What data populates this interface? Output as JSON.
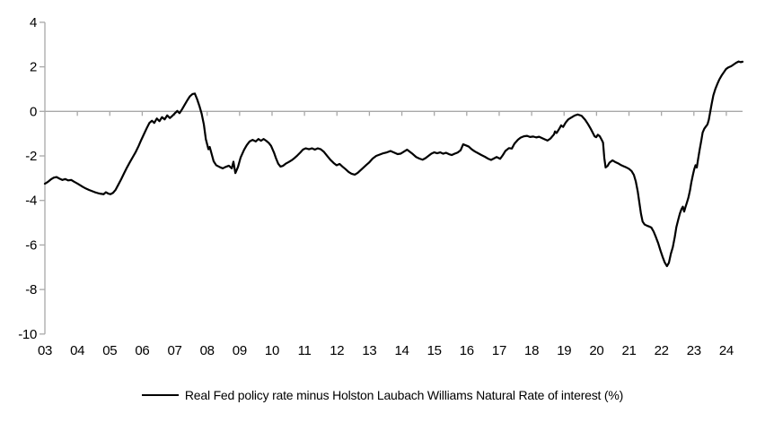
{
  "chart_data": {
    "type": "line",
    "title": "",
    "legend": {
      "label": "Real Fed policy rate minus Holston Laubach Williams Natural Rate of interest (%)",
      "position": "bottom"
    },
    "x_axis": {
      "tick_labels": [
        "03",
        "04",
        "05",
        "06",
        "07",
        "08",
        "09",
        "10",
        "11",
        "12",
        "13",
        "14",
        "15",
        "16",
        "17",
        "18",
        "19",
        "20",
        "21",
        "22",
        "23",
        "24"
      ],
      "tick_years": [
        2003,
        2004,
        2005,
        2006,
        2007,
        2008,
        2009,
        2010,
        2011,
        2012,
        2013,
        2014,
        2015,
        2016,
        2017,
        2018,
        2019,
        2020,
        2021,
        2022,
        2023,
        2024
      ],
      "range": [
        2003,
        2024.5
      ]
    },
    "y_axis": {
      "tick_values": [
        4,
        2,
        0,
        -2,
        -4,
        -6,
        -8,
        -10
      ],
      "range": [
        -10,
        4
      ]
    },
    "grid": false,
    "zero_line": true,
    "colors": {
      "series": "#000000",
      "axis": "#a8a8a8",
      "text": "#000000",
      "background": "#ffffff"
    },
    "series": [
      {
        "name": "Real Fed policy rate minus Holston Laubach Williams Natural Rate of interest (%)",
        "color": "#000000",
        "points": [
          [
            2003.0,
            -3.25
          ],
          [
            2003.09,
            -3.17
          ],
          [
            2003.18,
            -3.06
          ],
          [
            2003.27,
            -2.98
          ],
          [
            2003.36,
            -2.95
          ],
          [
            2003.45,
            -3.02
          ],
          [
            2003.54,
            -3.08
          ],
          [
            2003.63,
            -3.04
          ],
          [
            2003.72,
            -3.1
          ],
          [
            2003.81,
            -3.08
          ],
          [
            2003.9,
            -3.16
          ],
          [
            2004.0,
            -3.24
          ],
          [
            2004.09,
            -3.32
          ],
          [
            2004.18,
            -3.4
          ],
          [
            2004.27,
            -3.47
          ],
          [
            2004.36,
            -3.53
          ],
          [
            2004.45,
            -3.58
          ],
          [
            2004.54,
            -3.63
          ],
          [
            2004.63,
            -3.67
          ],
          [
            2004.72,
            -3.7
          ],
          [
            2004.81,
            -3.72
          ],
          [
            2004.88,
            -3.63
          ],
          [
            2004.95,
            -3.69
          ],
          [
            2005.02,
            -3.72
          ],
          [
            2005.1,
            -3.66
          ],
          [
            2005.18,
            -3.52
          ],
          [
            2005.26,
            -3.3
          ],
          [
            2005.35,
            -3.05
          ],
          [
            2005.44,
            -2.78
          ],
          [
            2005.53,
            -2.52
          ],
          [
            2005.62,
            -2.28
          ],
          [
            2005.71,
            -2.05
          ],
          [
            2005.8,
            -1.82
          ],
          [
            2005.89,
            -1.55
          ],
          [
            2005.97,
            -1.28
          ],
          [
            2006.06,
            -1.0
          ],
          [
            2006.14,
            -0.75
          ],
          [
            2006.22,
            -0.52
          ],
          [
            2006.3,
            -0.42
          ],
          [
            2006.37,
            -0.52
          ],
          [
            2006.45,
            -0.32
          ],
          [
            2006.53,
            -0.44
          ],
          [
            2006.61,
            -0.26
          ],
          [
            2006.69,
            -0.36
          ],
          [
            2006.77,
            -0.18
          ],
          [
            2006.85,
            -0.3
          ],
          [
            2006.93,
            -0.2
          ],
          [
            2007.01,
            -0.08
          ],
          [
            2007.08,
            0.02
          ],
          [
            2007.15,
            -0.08
          ],
          [
            2007.23,
            0.1
          ],
          [
            2007.31,
            0.3
          ],
          [
            2007.39,
            0.5
          ],
          [
            2007.47,
            0.68
          ],
          [
            2007.55,
            0.78
          ],
          [
            2007.62,
            0.8
          ],
          [
            2007.69,
            0.55
          ],
          [
            2007.76,
            0.25
          ],
          [
            2007.83,
            -0.1
          ],
          [
            2007.9,
            -0.6
          ],
          [
            2007.96,
            -1.25
          ],
          [
            2008.04,
            -1.7
          ],
          [
            2008.08,
            -1.6
          ],
          [
            2008.14,
            -1.92
          ],
          [
            2008.2,
            -2.24
          ],
          [
            2008.28,
            -2.42
          ],
          [
            2008.4,
            -2.51
          ],
          [
            2008.48,
            -2.56
          ],
          [
            2008.56,
            -2.5
          ],
          [
            2008.67,
            -2.44
          ],
          [
            2008.76,
            -2.56
          ],
          [
            2008.81,
            -2.26
          ],
          [
            2008.87,
            -2.77
          ],
          [
            2008.95,
            -2.5
          ],
          [
            2009.03,
            -2.08
          ],
          [
            2009.14,
            -1.72
          ],
          [
            2009.22,
            -1.52
          ],
          [
            2009.31,
            -1.35
          ],
          [
            2009.4,
            -1.28
          ],
          [
            2009.5,
            -1.35
          ],
          [
            2009.58,
            -1.24
          ],
          [
            2009.66,
            -1.32
          ],
          [
            2009.74,
            -1.24
          ],
          [
            2009.82,
            -1.32
          ],
          [
            2009.9,
            -1.42
          ],
          [
            2009.97,
            -1.55
          ],
          [
            2010.06,
            -1.85
          ],
          [
            2010.12,
            -2.1
          ],
          [
            2010.19,
            -2.35
          ],
          [
            2010.26,
            -2.48
          ],
          [
            2010.33,
            -2.45
          ],
          [
            2010.42,
            -2.35
          ],
          [
            2010.51,
            -2.28
          ],
          [
            2010.6,
            -2.2
          ],
          [
            2010.69,
            -2.1
          ],
          [
            2010.78,
            -1.98
          ],
          [
            2010.87,
            -1.85
          ],
          [
            2010.95,
            -1.72
          ],
          [
            2011.04,
            -1.66
          ],
          [
            2011.14,
            -1.7
          ],
          [
            2011.23,
            -1.66
          ],
          [
            2011.32,
            -1.72
          ],
          [
            2011.41,
            -1.66
          ],
          [
            2011.5,
            -1.7
          ],
          [
            2011.6,
            -1.82
          ],
          [
            2011.7,
            -2.0
          ],
          [
            2011.8,
            -2.18
          ],
          [
            2011.9,
            -2.32
          ],
          [
            2011.99,
            -2.42
          ],
          [
            2012.08,
            -2.36
          ],
          [
            2012.17,
            -2.48
          ],
          [
            2012.27,
            -2.6
          ],
          [
            2012.36,
            -2.72
          ],
          [
            2012.45,
            -2.8
          ],
          [
            2012.55,
            -2.84
          ],
          [
            2012.64,
            -2.76
          ],
          [
            2012.73,
            -2.64
          ],
          [
            2012.82,
            -2.52
          ],
          [
            2012.91,
            -2.4
          ],
          [
            2012.99,
            -2.3
          ],
          [
            2013.1,
            -2.12
          ],
          [
            2013.21,
            -2.0
          ],
          [
            2013.32,
            -1.94
          ],
          [
            2013.43,
            -1.88
          ],
          [
            2013.54,
            -1.84
          ],
          [
            2013.65,
            -1.78
          ],
          [
            2013.76,
            -1.85
          ],
          [
            2013.87,
            -1.92
          ],
          [
            2013.96,
            -1.9
          ],
          [
            2014.05,
            -1.82
          ],
          [
            2014.16,
            -1.72
          ],
          [
            2014.25,
            -1.82
          ],
          [
            2014.34,
            -1.92
          ],
          [
            2014.44,
            -2.05
          ],
          [
            2014.54,
            -2.12
          ],
          [
            2014.64,
            -2.17
          ],
          [
            2014.73,
            -2.1
          ],
          [
            2014.82,
            -2.0
          ],
          [
            2014.91,
            -1.9
          ],
          [
            2015.0,
            -1.84
          ],
          [
            2015.09,
            -1.88
          ],
          [
            2015.18,
            -1.84
          ],
          [
            2015.27,
            -1.9
          ],
          [
            2015.36,
            -1.86
          ],
          [
            2015.45,
            -1.92
          ],
          [
            2015.54,
            -1.96
          ],
          [
            2015.63,
            -1.9
          ],
          [
            2015.72,
            -1.85
          ],
          [
            2015.81,
            -1.75
          ],
          [
            2015.89,
            -1.48
          ],
          [
            2015.96,
            -1.52
          ],
          [
            2016.06,
            -1.58
          ],
          [
            2016.15,
            -1.7
          ],
          [
            2016.25,
            -1.8
          ],
          [
            2016.35,
            -1.88
          ],
          [
            2016.45,
            -1.96
          ],
          [
            2016.56,
            -2.04
          ],
          [
            2016.65,
            -2.12
          ],
          [
            2016.75,
            -2.18
          ],
          [
            2016.83,
            -2.12
          ],
          [
            2016.92,
            -2.05
          ],
          [
            2016.99,
            -2.1
          ],
          [
            2017.03,
            -2.13
          ],
          [
            2017.11,
            -1.97
          ],
          [
            2017.19,
            -1.78
          ],
          [
            2017.3,
            -1.65
          ],
          [
            2017.39,
            -1.67
          ],
          [
            2017.47,
            -1.45
          ],
          [
            2017.58,
            -1.27
          ],
          [
            2017.66,
            -1.18
          ],
          [
            2017.76,
            -1.12
          ],
          [
            2017.86,
            -1.1
          ],
          [
            2017.95,
            -1.15
          ],
          [
            2018.05,
            -1.13
          ],
          [
            2018.14,
            -1.17
          ],
          [
            2018.23,
            -1.14
          ],
          [
            2018.32,
            -1.2
          ],
          [
            2018.41,
            -1.26
          ],
          [
            2018.49,
            -1.31
          ],
          [
            2018.58,
            -1.22
          ],
          [
            2018.69,
            -1.03
          ],
          [
            2018.72,
            -0.9
          ],
          [
            2018.77,
            -0.97
          ],
          [
            2018.86,
            -0.76
          ],
          [
            2018.91,
            -0.63
          ],
          [
            2018.97,
            -0.7
          ],
          [
            2019.05,
            -0.5
          ],
          [
            2019.13,
            -0.36
          ],
          [
            2019.24,
            -0.26
          ],
          [
            2019.32,
            -0.19
          ],
          [
            2019.42,
            -0.14
          ],
          [
            2019.54,
            -0.2
          ],
          [
            2019.65,
            -0.38
          ],
          [
            2019.74,
            -0.58
          ],
          [
            2019.82,
            -0.78
          ],
          [
            2019.88,
            -0.95
          ],
          [
            2019.94,
            -1.12
          ],
          [
            2019.99,
            -1.16
          ],
          [
            2020.04,
            -1.05
          ],
          [
            2020.1,
            -1.12
          ],
          [
            2020.16,
            -1.28
          ],
          [
            2020.2,
            -1.4
          ],
          [
            2020.24,
            -2.1
          ],
          [
            2020.28,
            -2.52
          ],
          [
            2020.34,
            -2.45
          ],
          [
            2020.4,
            -2.3
          ],
          [
            2020.49,
            -2.2
          ],
          [
            2020.57,
            -2.27
          ],
          [
            2020.66,
            -2.33
          ],
          [
            2020.74,
            -2.4
          ],
          [
            2020.83,
            -2.46
          ],
          [
            2020.92,
            -2.52
          ],
          [
            2021.0,
            -2.58
          ],
          [
            2021.08,
            -2.68
          ],
          [
            2021.15,
            -2.85
          ],
          [
            2021.21,
            -3.15
          ],
          [
            2021.27,
            -3.6
          ],
          [
            2021.32,
            -4.1
          ],
          [
            2021.37,
            -4.6
          ],
          [
            2021.42,
            -4.95
          ],
          [
            2021.48,
            -5.08
          ],
          [
            2021.55,
            -5.13
          ],
          [
            2021.62,
            -5.17
          ],
          [
            2021.69,
            -5.22
          ],
          [
            2021.76,
            -5.4
          ],
          [
            2021.83,
            -5.65
          ],
          [
            2021.9,
            -5.92
          ],
          [
            2021.97,
            -6.25
          ],
          [
            2022.04,
            -6.55
          ],
          [
            2022.1,
            -6.78
          ],
          [
            2022.17,
            -6.95
          ],
          [
            2022.23,
            -6.8
          ],
          [
            2022.29,
            -6.4
          ],
          [
            2022.35,
            -6.1
          ],
          [
            2022.41,
            -5.65
          ],
          [
            2022.46,
            -5.2
          ],
          [
            2022.52,
            -4.85
          ],
          [
            2022.57,
            -4.58
          ],
          [
            2022.62,
            -4.38
          ],
          [
            2022.66,
            -4.28
          ],
          [
            2022.7,
            -4.5
          ],
          [
            2022.74,
            -4.3
          ],
          [
            2022.78,
            -4.12
          ],
          [
            2022.83,
            -3.88
          ],
          [
            2022.88,
            -3.55
          ],
          [
            2022.92,
            -3.2
          ],
          [
            2022.97,
            -2.85
          ],
          [
            2023.01,
            -2.6
          ],
          [
            2023.05,
            -2.42
          ],
          [
            2023.09,
            -2.52
          ],
          [
            2023.13,
            -2.14
          ],
          [
            2023.18,
            -1.7
          ],
          [
            2023.23,
            -1.3
          ],
          [
            2023.27,
            -0.95
          ],
          [
            2023.32,
            -0.78
          ],
          [
            2023.37,
            -0.68
          ],
          [
            2023.42,
            -0.58
          ],
          [
            2023.46,
            -0.38
          ],
          [
            2023.5,
            -0.05
          ],
          [
            2023.55,
            0.35
          ],
          [
            2023.6,
            0.72
          ],
          [
            2023.66,
            1.0
          ],
          [
            2023.72,
            1.22
          ],
          [
            2023.78,
            1.42
          ],
          [
            2023.85,
            1.6
          ],
          [
            2023.92,
            1.75
          ],
          [
            2023.99,
            1.9
          ],
          [
            2024.07,
            1.98
          ],
          [
            2024.15,
            2.03
          ],
          [
            2024.22,
            2.1
          ],
          [
            2024.3,
            2.18
          ],
          [
            2024.38,
            2.24
          ],
          [
            2024.44,
            2.21
          ],
          [
            2024.5,
            2.23
          ]
        ]
      }
    ]
  }
}
